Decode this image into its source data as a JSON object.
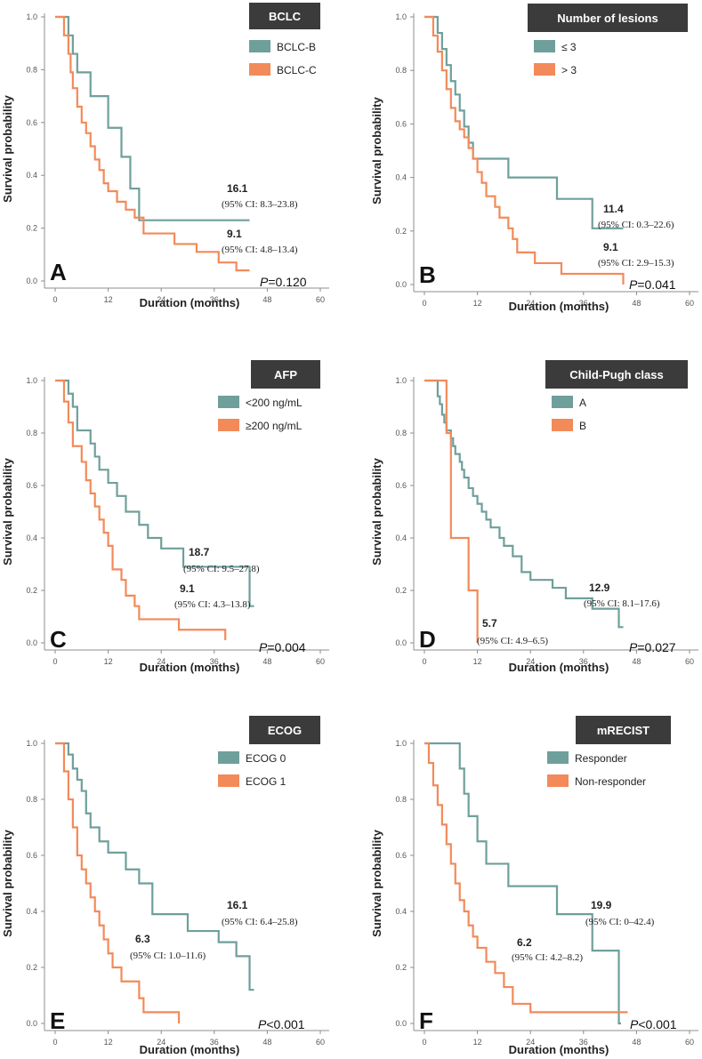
{
  "colors": {
    "teal": "#6f9f9b",
    "orange": "#f28a5a",
    "title_bg": "#3b3b3b"
  },
  "chart_data": [
    {
      "type": "line",
      "panel": "A",
      "title": "BCLC",
      "xlabel": "Duration (months)",
      "ylabel": "Survival probability",
      "xlim": [
        0,
        60
      ],
      "ylim": [
        0,
        1
      ],
      "xticks": [
        "0",
        "12",
        "24",
        "36",
        "48",
        "60"
      ],
      "yticks": [
        "0.0",
        "0.2",
        "0.4",
        "0.6",
        "0.8",
        "1.0"
      ],
      "p_prefix": "P",
      "p_rest": "=0.120",
      "series": [
        {
          "name": "BCLC-B",
          "color": "#6f9f9b",
          "median": "16.1",
          "ci": "(95% CI: 8.3–23.8)",
          "x": [
            0,
            3,
            4,
            5,
            8,
            10,
            12,
            15,
            17,
            19,
            21,
            44
          ],
          "y": [
            1.0,
            0.93,
            0.86,
            0.79,
            0.7,
            0.7,
            0.58,
            0.47,
            0.35,
            0.23,
            0.23,
            0.23
          ]
        },
        {
          "name": "BCLC-C",
          "color": "#f28a5a",
          "median": "9.1",
          "ci": "(95% CI: 4.8–13.4)",
          "x": [
            0,
            2,
            3,
            3.5,
            4,
            5,
            6,
            7,
            8,
            9,
            10,
            11,
            12,
            14,
            16,
            18,
            20,
            24,
            27,
            32,
            37,
            41,
            44
          ],
          "y": [
            1.0,
            0.93,
            0.86,
            0.79,
            0.73,
            0.66,
            0.6,
            0.56,
            0.51,
            0.46,
            0.42,
            0.37,
            0.34,
            0.3,
            0.27,
            0.24,
            0.18,
            0.18,
            0.14,
            0.11,
            0.07,
            0.04,
            0.04
          ]
        }
      ]
    },
    {
      "type": "line",
      "panel": "B",
      "title": "Number of  lesions",
      "xlabel": "Duration (months)",
      "ylabel": "Survival probability",
      "xlim": [
        0,
        60
      ],
      "ylim": [
        0,
        1
      ],
      "xticks": [
        "0",
        "12",
        "24",
        "36",
        "48",
        "60"
      ],
      "yticks": [
        "0.0",
        "0.2",
        "0.4",
        "0.6",
        "0.8",
        "1.0"
      ],
      "p_prefix": "P",
      "p_rest": "=0.041",
      "series": [
        {
          "name": "≤ 3",
          "color": "#6f9f9b",
          "median": "11.4",
          "ci": "(95% CI: 0.3–22.6)",
          "x": [
            0,
            3,
            4,
            5,
            6,
            7,
            8,
            9,
            10,
            11,
            12,
            19,
            30,
            38,
            45
          ],
          "y": [
            1.0,
            0.94,
            0.88,
            0.82,
            0.76,
            0.71,
            0.65,
            0.59,
            0.53,
            0.47,
            0.47,
            0.4,
            0.32,
            0.21,
            0.21
          ]
        },
        {
          "name": "> 3",
          "color": "#f28a5a",
          "median": "9.1",
          "ci": "(95% CI: 2.9–15.3)",
          "x": [
            0,
            2,
            3,
            4,
            5,
            6,
            7,
            8,
            9,
            10,
            11,
            12,
            13,
            14,
            16,
            17,
            19,
            20,
            21,
            25,
            31,
            45
          ],
          "y": [
            1.0,
            0.93,
            0.87,
            0.8,
            0.73,
            0.66,
            0.61,
            0.58,
            0.55,
            0.51,
            0.47,
            0.42,
            0.38,
            0.33,
            0.29,
            0.25,
            0.21,
            0.17,
            0.12,
            0.08,
            0.04,
            0.0
          ]
        }
      ]
    },
    {
      "type": "line",
      "panel": "C",
      "title": "AFP",
      "xlabel": "Duration (months)",
      "ylabel": "Survival probability",
      "xlim": [
        0,
        60
      ],
      "ylim": [
        0,
        1
      ],
      "xticks": [
        "0",
        "12",
        "24",
        "36",
        "48",
        "60"
      ],
      "yticks": [
        "0.0",
        "0.2",
        "0.4",
        "0.6",
        "0.8",
        "1.0"
      ],
      "p_prefix": "P",
      "p_rest": "=0.004",
      "series": [
        {
          "name": "<200 ng/mL",
          "color": "#6f9f9b",
          "median": "18.7",
          "ci": "(95% CI: 9.5–27.8)",
          "x": [
            0,
            3,
            4,
            5,
            8,
            9,
            10,
            12,
            14,
            16,
            19,
            21,
            24,
            29,
            44,
            45
          ],
          "y": [
            1.0,
            0.95,
            0.9,
            0.81,
            0.76,
            0.71,
            0.66,
            0.61,
            0.56,
            0.5,
            0.45,
            0.4,
            0.36,
            0.29,
            0.14,
            0.14
          ]
        },
        {
          "name": "≥200 ng/mL",
          "color": "#f28a5a",
          "median": "9.1",
          "ci": "(95% CI: 4.3–13.8)",
          "x": [
            0,
            2,
            3,
            4,
            6,
            7,
            8,
            9,
            10,
            11,
            12,
            13,
            15,
            16,
            18,
            19,
            28,
            38,
            38.5
          ],
          "y": [
            1.0,
            0.92,
            0.84,
            0.75,
            0.69,
            0.62,
            0.57,
            0.52,
            0.47,
            0.42,
            0.37,
            0.28,
            0.24,
            0.18,
            0.14,
            0.09,
            0.05,
            0.05,
            0.01
          ]
        }
      ]
    },
    {
      "type": "line",
      "panel": "D",
      "title": "Child-Pugh class",
      "xlabel": "Duration (months)",
      "ylabel": "Survival probability",
      "xlim": [
        0,
        60
      ],
      "ylim": [
        0,
        1
      ],
      "xticks": [
        "0",
        "12",
        "24",
        "36",
        "48",
        "60"
      ],
      "yticks": [
        "0.0",
        "0.2",
        "0.4",
        "0.6",
        "0.8",
        "1.0"
      ],
      "p_prefix": "P",
      "p_rest": "=0.027",
      "series": [
        {
          "name": "A",
          "color": "#6f9f9b",
          "median": "12.9",
          "ci": "(95% CI: 8.1–17.6)",
          "x": [
            0,
            3,
            3.5,
            4,
            4.5,
            5,
            6,
            6.5,
            7,
            8,
            8.5,
            9,
            10,
            11,
            12,
            13,
            14,
            15,
            17,
            18,
            20,
            22,
            24,
            29,
            32,
            38,
            44,
            45
          ],
          "y": [
            1.0,
            0.94,
            0.91,
            0.87,
            0.84,
            0.81,
            0.78,
            0.75,
            0.72,
            0.69,
            0.66,
            0.63,
            0.59,
            0.56,
            0.53,
            0.5,
            0.47,
            0.44,
            0.4,
            0.37,
            0.33,
            0.27,
            0.24,
            0.21,
            0.17,
            0.13,
            0.06,
            0.06
          ]
        },
        {
          "name": "B",
          "color": "#f28a5a",
          "median": "5.7",
          "ci": "(95% CI: 4.9–6.5)",
          "x": [
            0,
            5,
            6,
            10,
            12
          ],
          "y": [
            1.0,
            0.8,
            0.4,
            0.2,
            0.0
          ]
        }
      ]
    },
    {
      "type": "line",
      "panel": "E",
      "title": "ECOG",
      "xlabel": "Duration (months)",
      "ylabel": "Survival probability",
      "xlim": [
        0,
        60
      ],
      "ylim": [
        0,
        1
      ],
      "xticks": [
        "0",
        "12",
        "24",
        "36",
        "48",
        "60"
      ],
      "yticks": [
        "0.0",
        "0.2",
        "0.4",
        "0.6",
        "0.8",
        "1.0"
      ],
      "p_prefix": "P",
      "p_rest": "<0.001",
      "series": [
        {
          "name": "ECOG 0",
          "color": "#6f9f9b",
          "median": "16.1",
          "ci": "(95% CI: 6.4–25.8)",
          "x": [
            0,
            3,
            4,
            5,
            6,
            7,
            8,
            10,
            12,
            16,
            19,
            22,
            30,
            37,
            41,
            44,
            45
          ],
          "y": [
            1.0,
            0.96,
            0.91,
            0.87,
            0.83,
            0.75,
            0.7,
            0.65,
            0.61,
            0.55,
            0.5,
            0.39,
            0.33,
            0.29,
            0.24,
            0.12,
            0.12
          ]
        },
        {
          "name": "ECOG 1",
          "color": "#f28a5a",
          "median": "6.3",
          "ci": "(95% CI: 1.0–11.6)",
          "x": [
            0,
            2,
            3,
            4,
            5,
            6,
            7,
            8,
            9,
            10,
            11,
            12,
            13,
            15,
            19,
            20,
            28
          ],
          "y": [
            1.0,
            0.9,
            0.8,
            0.7,
            0.6,
            0.55,
            0.5,
            0.45,
            0.4,
            0.35,
            0.3,
            0.25,
            0.2,
            0.15,
            0.09,
            0.04,
            0.0
          ]
        }
      ]
    },
    {
      "type": "line",
      "panel": "F",
      "title": "mRECIST",
      "xlabel": "Duration (months)",
      "ylabel": "Survival probability",
      "xlim": [
        0,
        60
      ],
      "ylim": [
        0,
        1
      ],
      "xticks": [
        "0",
        "12",
        "24",
        "36",
        "48",
        "60"
      ],
      "yticks": [
        "0.0",
        "0.2",
        "0.4",
        "0.6",
        "0.8",
        "1.0"
      ],
      "p_prefix": "P",
      "p_rest": "<0.001",
      "series": [
        {
          "name": "Responder",
          "color": "#6f9f9b",
          "median": "19.9",
          "ci": "(95% CI: 0–42.4)",
          "x": [
            0,
            8,
            9,
            10,
            12,
            14,
            19,
            30,
            38,
            44,
            44.5
          ],
          "y": [
            1.0,
            0.91,
            0.82,
            0.74,
            0.65,
            0.57,
            0.49,
            0.39,
            0.26,
            0.0,
            0.0
          ]
        },
        {
          "name": "Non-responder",
          "color": "#f28a5a",
          "median": "6.2",
          "ci": "(95% CI: 4.2–8.2)",
          "x": [
            0,
            1,
            2,
            3,
            4,
            5,
            6,
            7,
            8,
            9,
            10,
            11,
            12,
            14,
            16,
            18,
            20,
            24,
            46
          ],
          "y": [
            1.0,
            0.93,
            0.85,
            0.78,
            0.71,
            0.64,
            0.57,
            0.5,
            0.44,
            0.4,
            0.35,
            0.31,
            0.27,
            0.22,
            0.18,
            0.13,
            0.07,
            0.04,
            0.04
          ]
        }
      ]
    }
  ]
}
